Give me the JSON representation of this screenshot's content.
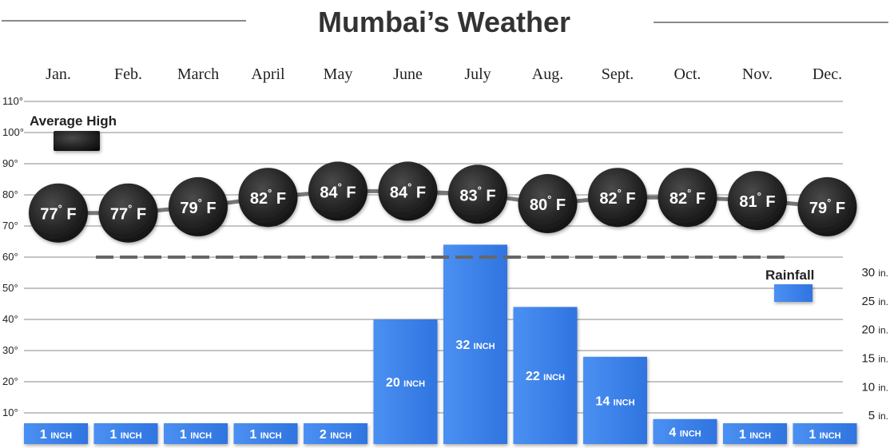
{
  "chart_data": {
    "type": "bar",
    "title": "Mumbai’s Weather",
    "categories": [
      "Jan.",
      "Feb.",
      "March",
      "April",
      "May",
      "June",
      "July",
      "Aug.",
      "Sept.",
      "Oct.",
      "Nov.",
      "Dec."
    ],
    "ylim": [
      0,
      110
    ],
    "y_ticks": [
      10,
      20,
      30,
      40,
      50,
      60,
      70,
      80,
      90,
      100,
      110
    ],
    "y_tick_suffix": "°",
    "rain_ticks": [
      5,
      10,
      15,
      20,
      25,
      30
    ],
    "rain_unit": "in.",
    "rain_range": [
      0,
      30
    ],
    "series": [
      {
        "name": "Average High",
        "type": "line",
        "values": [
          77,
          77,
          79,
          82,
          84,
          84,
          83,
          80,
          82,
          82,
          81,
          79
        ],
        "label_unit": "F",
        "color": "#2a2a2a"
      },
      {
        "name": "Rainfall",
        "type": "bar",
        "values": [
          1,
          1,
          1,
          1,
          2,
          20,
          32,
          22,
          14,
          4,
          1,
          1
        ],
        "label_unit": "INCH",
        "color": "#3e86ee"
      }
    ],
    "reference_line": {
      "value": 60,
      "style": "dashed",
      "color": "#666666"
    },
    "grid": true,
    "legend": {
      "average_high": "top-left",
      "rainfall": "right"
    }
  }
}
